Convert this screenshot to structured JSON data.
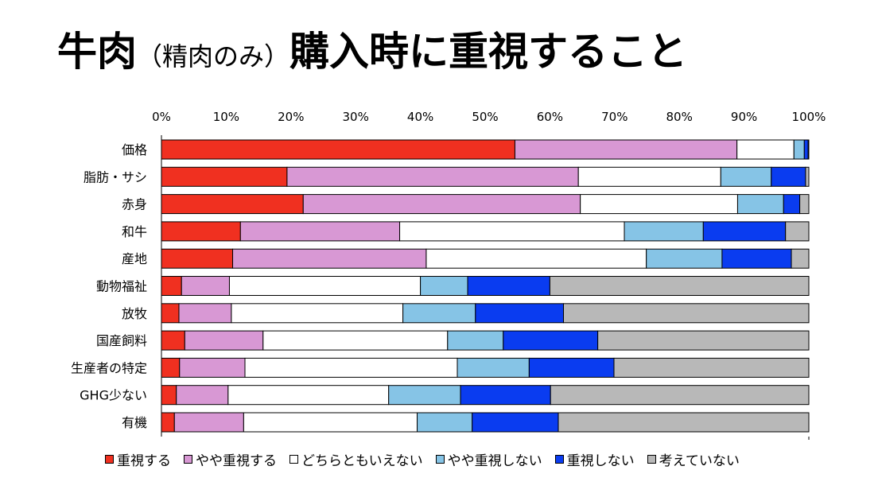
{
  "title": {
    "main1": "牛肉",
    "sub": "（精肉のみ）",
    "main2": "購入時に重視すること"
  },
  "chart_data": {
    "type": "bar",
    "orientation": "horizontal",
    "stacked": true,
    "title": "牛肉（精肉のみ）購入時に重視すること",
    "xlim": [
      0,
      100
    ],
    "x_ticks": [
      "0%",
      "10%",
      "20%",
      "30%",
      "40%",
      "50%",
      "60%",
      "70%",
      "80%",
      "90%",
      "100%"
    ],
    "grid": false,
    "legend_position": "bottom",
    "categories": [
      "価格",
      "脂肪・サシ",
      "赤身",
      "和牛",
      "産地",
      "動物福祉",
      "放牧",
      "国産飼料",
      "生産者の特定",
      "GHG少ない",
      "有機"
    ],
    "series": [
      {
        "name": "重視する",
        "color": "#f03020",
        "values": [
          54.6,
          19.4,
          21.9,
          12.2,
          11.0,
          3.1,
          2.7,
          3.6,
          2.8,
          2.3,
          2.0
        ]
      },
      {
        "name": "やや重視する",
        "color": "#d898d4",
        "values": [
          34.3,
          45.0,
          42.8,
          24.6,
          29.9,
          7.4,
          8.1,
          12.1,
          10.1,
          8.0,
          10.7
        ]
      },
      {
        "name": "どちらともいえない",
        "color": "#ffffff",
        "values": [
          8.8,
          22.0,
          24.3,
          34.7,
          34.0,
          29.5,
          26.5,
          28.5,
          32.8,
          24.8,
          26.8
        ]
      },
      {
        "name": "やや重視しない",
        "color": "#86c4e6",
        "values": [
          1.6,
          7.8,
          7.1,
          12.2,
          11.7,
          7.3,
          11.2,
          8.6,
          11.1,
          11.1,
          8.5
        ]
      },
      {
        "name": "重視しない",
        "color": "#0a3cf0",
        "values": [
          0.6,
          5.3,
          2.5,
          12.7,
          10.7,
          12.7,
          13.6,
          14.6,
          13.1,
          13.9,
          13.3
        ]
      },
      {
        "name": "考えていない",
        "color": "#b8b8b8",
        "values": [
          0.1,
          0.5,
          1.4,
          3.6,
          2.7,
          40.0,
          37.9,
          32.6,
          30.1,
          39.9,
          38.7
        ]
      }
    ]
  }
}
